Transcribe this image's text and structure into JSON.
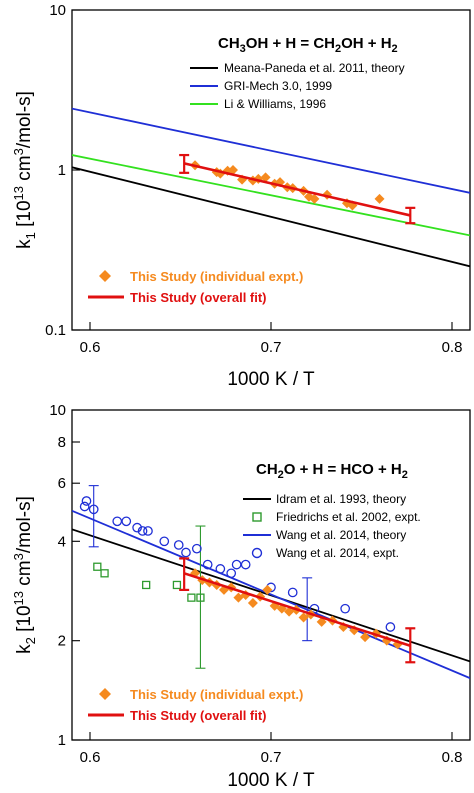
{
  "chart_data": [
    {
      "type": "line",
      "panel": "top",
      "scale": {
        "y": "log"
      },
      "xlim": [
        0.59,
        0.81
      ],
      "ylim": [
        0.1,
        10
      ],
      "x_ticks": [
        "0.6",
        "0.7",
        "0.8"
      ],
      "y_ticks": [
        "0.1",
        "1",
        "10"
      ],
      "xlabel": "1000 K / T",
      "ylabel": {
        "pre": "k",
        "sub": "1",
        "mid": " [10",
        "sup": "13",
        "post": " cm",
        "sup2": "3",
        "post2": "/mol-s]"
      },
      "equation": {
        "a": "CH",
        "a_sub": "3",
        "b": "OH + H = CH",
        "b_sub": "2",
        "c": "OH + H",
        "c_sub": "2"
      },
      "legend": {
        "lines": [
          {
            "name": "Meana-Paneda et al. 2011, theory",
            "color": "#000000"
          },
          {
            "name": "GRI-Mech 3.0, 1999",
            "color": "#1f2fd6"
          },
          {
            "name": "Li & Williams, 1996",
            "color": "#33e11f"
          }
        ],
        "study_points": "This Study (individual expt.)",
        "study_fit": "This Study (overall fit)"
      },
      "series": [
        {
          "name": "Meana-Paneda et al. 2011, theory",
          "color": "#000000",
          "style": "line",
          "x": [
            0.59,
            0.81
          ],
          "y": [
            1.04,
            0.25
          ]
        },
        {
          "name": "GRI-Mech 3.0, 1999",
          "color": "#1f2fd6",
          "style": "line",
          "x": [
            0.59,
            0.81
          ],
          "y": [
            2.42,
            0.72
          ]
        },
        {
          "name": "Li & Williams, 1996",
          "color": "#33e11f",
          "style": "line",
          "x": [
            0.59,
            0.81
          ],
          "y": [
            1.24,
            0.39
          ]
        },
        {
          "name": "This Study (individual expt.)",
          "color": "#f58a1f",
          "style": "diamond",
          "x": [
            0.658,
            0.67,
            0.672,
            0.676,
            0.679,
            0.684,
            0.69,
            0.693,
            0.697,
            0.702,
            0.705,
            0.709,
            0.712,
            0.718,
            0.721,
            0.724,
            0.731,
            0.742,
            0.745,
            0.76
          ],
          "y": [
            1.07,
            0.97,
            0.95,
            0.99,
            1.0,
            0.87,
            0.86,
            0.88,
            0.9,
            0.82,
            0.84,
            0.78,
            0.77,
            0.74,
            0.68,
            0.66,
            0.7,
            0.62,
            0.6,
            0.66
          ]
        },
        {
          "name": "This Study (overall fit)",
          "color": "#e01010",
          "style": "fit",
          "x": [
            0.652,
            0.777
          ],
          "y": [
            1.1,
            0.52
          ],
          "err_lo": [
            0.96,
            0.465
          ],
          "err_hi": [
            1.24,
            0.58
          ]
        }
      ]
    },
    {
      "type": "scatter",
      "panel": "bottom",
      "scale": {
        "y": "log"
      },
      "xlim": [
        0.59,
        0.81
      ],
      "ylim": [
        1,
        10
      ],
      "x_ticks": [
        "0.6",
        "0.7",
        "0.8"
      ],
      "y_ticks": [
        "1",
        "2",
        "4",
        "6",
        "8",
        "10"
      ],
      "xlabel": "1000 K / T",
      "ylabel": {
        "pre": "k",
        "sub": "2",
        "mid": " [10",
        "sup": "13",
        "post": " cm",
        "sup2": "3",
        "post2": "/mol-s]"
      },
      "equation": {
        "a": "CH",
        "a_sub": "2",
        "b": "O + H = HCO + H",
        "b_sub": "2"
      },
      "legend": {
        "items": [
          {
            "name": "Idram et al. 1993, theory",
            "color": "#000000",
            "style": "line"
          },
          {
            "name": "Friedrichs et al. 2002, expt.",
            "color": "#2e9a2e",
            "style": "square"
          },
          {
            "name": "Wang et al. 2014, theory",
            "color": "#1f2fd6",
            "style": "line"
          },
          {
            "name": "Wang et al. 2014, expt.",
            "color": "#1f2fd6",
            "style": "circle"
          }
        ],
        "study_points": "This Study (individual expt.)",
        "study_fit": "This Study (overall fit)"
      },
      "series": [
        {
          "name": "Idram et al. 1993, theory",
          "color": "#000000",
          "style": "line",
          "x": [
            0.59,
            0.81
          ],
          "y": [
            4.35,
            1.73
          ]
        },
        {
          "name": "Wang et al. 2014, theory",
          "color": "#1f2fd6",
          "style": "line",
          "x": [
            0.59,
            0.81
          ],
          "y": [
            4.95,
            1.54
          ]
        },
        {
          "name": "Friedrichs et al. 2002, expt.",
          "color": "#2e9a2e",
          "style": "square",
          "x": [
            0.604,
            0.608,
            0.631,
            0.648,
            0.656,
            0.661
          ],
          "y": [
            3.35,
            3.2,
            2.95,
            2.95,
            2.7,
            2.7
          ],
          "errorbar": {
            "x": 0.661,
            "y": 2.7,
            "lo": 1.65,
            "hi": 4.45
          }
        },
        {
          "name": "Wang et al. 2014, expt.",
          "color": "#1f2fd6",
          "style": "circle",
          "x": [
            0.597,
            0.598,
            0.602,
            0.615,
            0.62,
            0.626,
            0.629,
            0.632,
            0.641,
            0.649,
            0.653,
            0.659,
            0.665,
            0.672,
            0.678,
            0.681,
            0.686,
            0.7,
            0.712,
            0.724,
            0.741,
            0.766
          ],
          "y": [
            5.1,
            5.3,
            5.0,
            4.6,
            4.6,
            4.4,
            4.3,
            4.3,
            4.0,
            3.9,
            3.7,
            3.8,
            3.4,
            3.3,
            3.2,
            3.4,
            3.4,
            2.9,
            2.8,
            2.5,
            2.5,
            2.2
          ],
          "errorbars": [
            {
              "x": 0.602,
              "y": 5.0,
              "lo": 3.85,
              "hi": 5.9
            },
            {
              "x": 0.72,
              "y": 2.5,
              "lo": 2.0,
              "hi": 3.1
            }
          ]
        },
        {
          "name": "This Study (individual expt.)",
          "color": "#f58a1f",
          "style": "diamond",
          "x": [
            0.658,
            0.662,
            0.666,
            0.67,
            0.674,
            0.678,
            0.682,
            0.686,
            0.69,
            0.694,
            0.698,
            0.702,
            0.706,
            0.71,
            0.714,
            0.718,
            0.722,
            0.728,
            0.734,
            0.74,
            0.746,
            0.752,
            0.758,
            0.764,
            0.77
          ],
          "y": [
            3.2,
            3.05,
            3.0,
            2.95,
            2.85,
            2.9,
            2.7,
            2.75,
            2.6,
            2.72,
            2.85,
            2.55,
            2.5,
            2.45,
            2.48,
            2.35,
            2.4,
            2.28,
            2.3,
            2.2,
            2.15,
            2.05,
            2.1,
            2.0,
            1.95
          ]
        },
        {
          "name": "This Study (overall fit)",
          "color": "#e01010",
          "style": "fit",
          "x": [
            0.652,
            0.777
          ],
          "y": [
            3.2,
            1.93
          ],
          "err_lo": [
            2.85,
            1.72
          ],
          "err_hi": [
            3.55,
            2.18
          ]
        }
      ]
    }
  ]
}
